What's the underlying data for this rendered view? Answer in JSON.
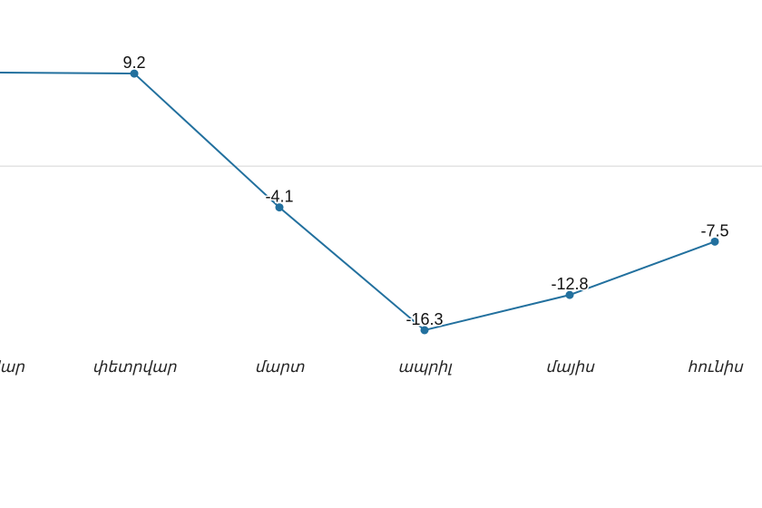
{
  "chart_data": {
    "type": "line",
    "categories": [
      "հունվար",
      "փետրվար",
      "մարտ",
      "ապրիլ",
      "մայիս",
      "հունիս"
    ],
    "series": [
      {
        "color": "#22709e",
        "values": [
          9.3,
          9.2,
          -4.1,
          -16.3,
          -12.8,
          -7.5
        ]
      }
    ],
    "ylim": [
      -20,
      12
    ],
    "yticks": [
      0
    ],
    "grid": true
  }
}
